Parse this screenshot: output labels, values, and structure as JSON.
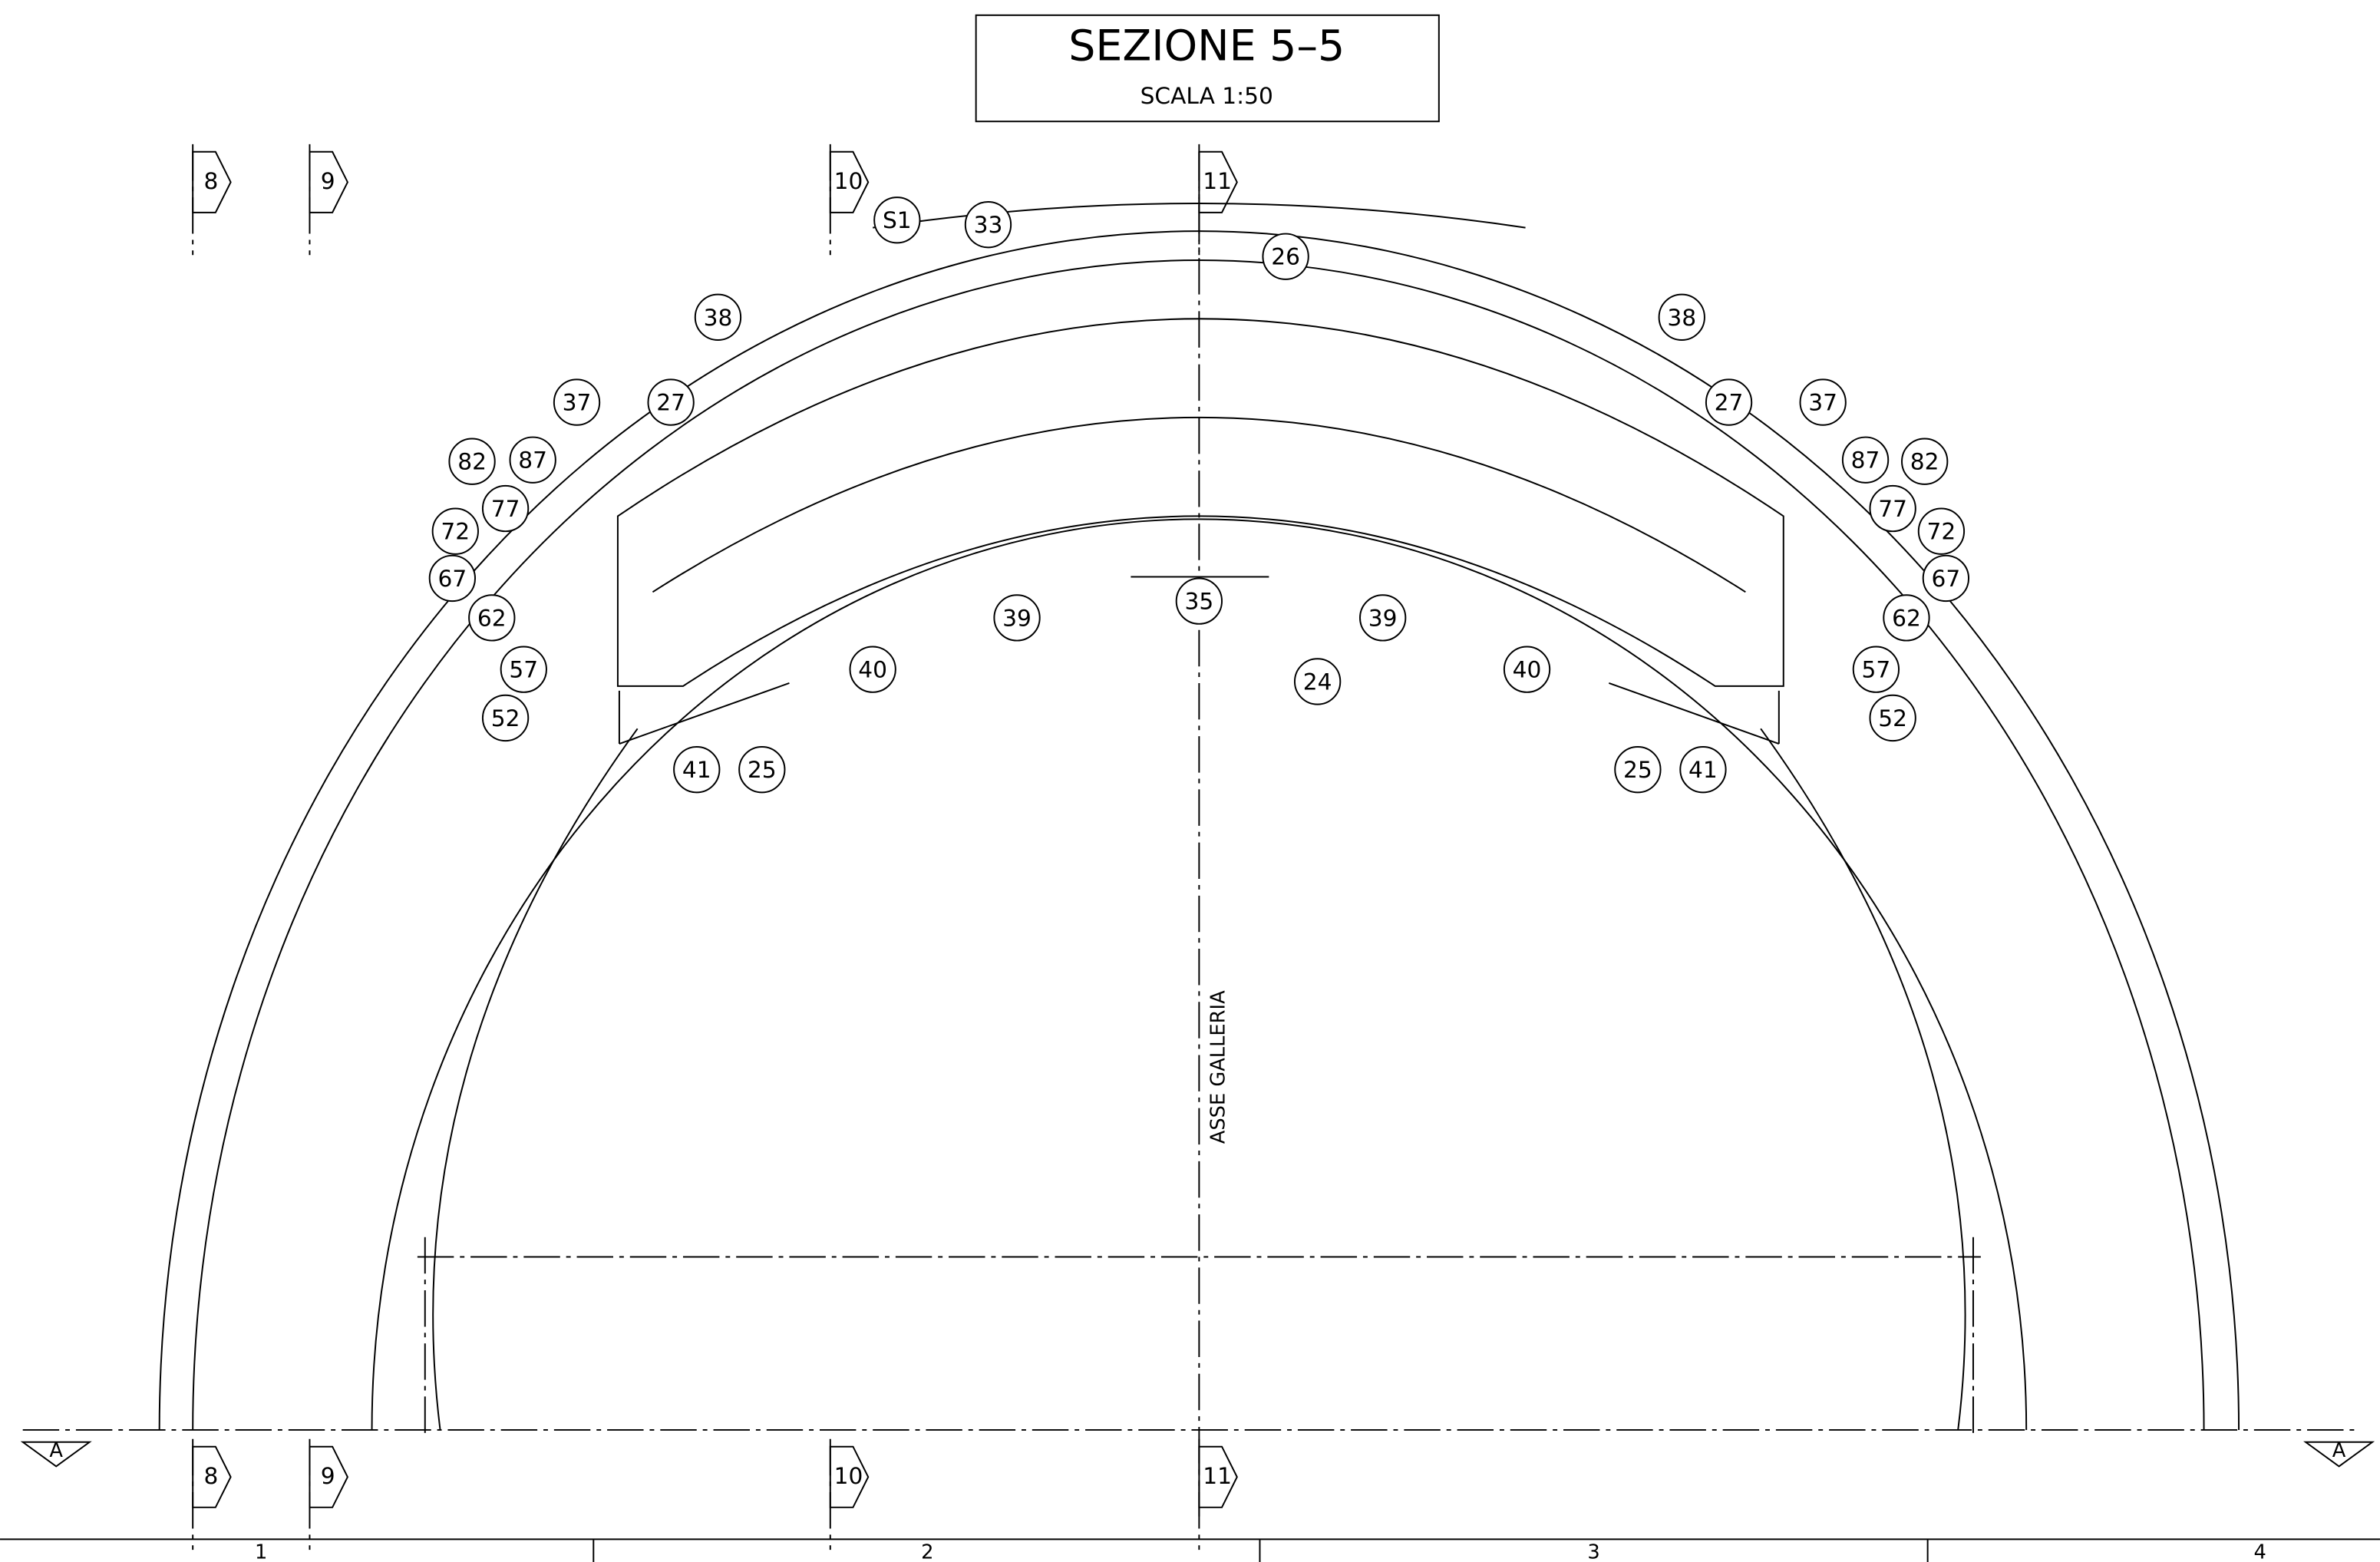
{
  "title": "SEZIONE 5–5",
  "scale": "SCALA 1:50",
  "axis_label": "ASSE GALLERIA",
  "section_marks": {
    "top": [
      "8",
      "9",
      "10",
      "11"
    ],
    "bottom": [
      "8",
      "9",
      "10",
      "11"
    ]
  },
  "view_marks": [
    "A",
    "A"
  ],
  "callouts": [
    "S1",
    "33",
    "26",
    "38",
    "38",
    "37",
    "27",
    "27",
    "37",
    "82",
    "87",
    "87",
    "82",
    "77",
    "77",
    "72",
    "72",
    "67",
    "67",
    "62",
    "62",
    "57",
    "57",
    "52",
    "52",
    "39",
    "35",
    "39",
    "40",
    "40",
    "24",
    "41",
    "25",
    "25",
    "41"
  ],
  "ruler": [
    "1",
    "2",
    "3",
    "4"
  ]
}
